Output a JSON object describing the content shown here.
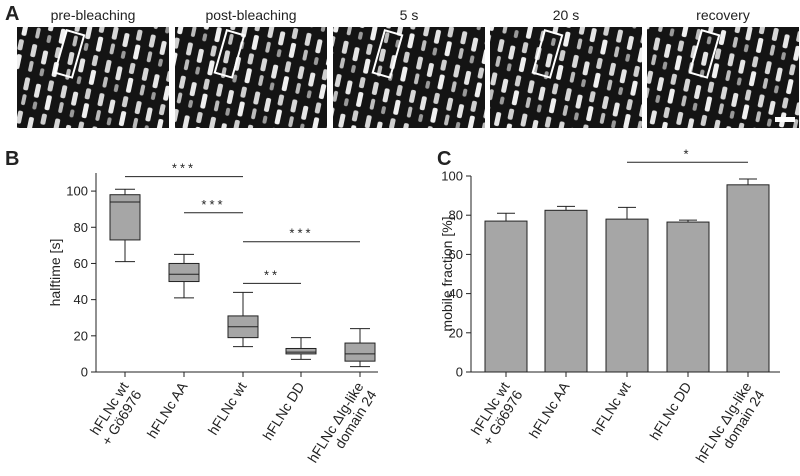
{
  "figure": {
    "panel_labels": [
      "A",
      "B",
      "C"
    ],
    "image_titles": [
      "pre-bleaching",
      "post-bleaching",
      "5 s",
      "20 s",
      "recovery"
    ]
  },
  "chart_data": [
    {
      "type": "box",
      "ylabel": "halftime [s]",
      "categories": [
        "hFLNc wt\n+ Gö6976",
        "hFLNc AA",
        "hFLNc wt",
        "hFLNc DD",
        "hFLNc ΔIg-like\ndomain 24"
      ],
      "boxes": [
        {
          "min": 61,
          "q1": 73,
          "median": 94,
          "q3": 98,
          "max": 101
        },
        {
          "min": 41,
          "q1": 50,
          "median": 54,
          "q3": 60,
          "max": 65
        },
        {
          "min": 14,
          "q1": 19,
          "median": 25,
          "q3": 31,
          "max": 44
        },
        {
          "min": 7,
          "q1": 10,
          "median": 11,
          "q3": 13,
          "max": 19
        },
        {
          "min": 3,
          "q1": 6,
          "median": 10,
          "q3": 16,
          "max": 24
        }
      ],
      "color": "#a6a6a6",
      "ylim": [
        0,
        110
      ],
      "yticks": [
        0,
        20,
        40,
        60,
        80,
        100
      ],
      "annotations": [
        {
          "label": "***",
          "y": 108,
          "between": [
            0,
            2
          ]
        },
        {
          "label": "***",
          "y": 88,
          "between": [
            1,
            2
          ]
        },
        {
          "label": "***",
          "y": 72,
          "between": [
            2,
            4
          ]
        },
        {
          "label": "**",
          "y": 49,
          "between": [
            2,
            3
          ]
        }
      ]
    },
    {
      "type": "bar",
      "ylabel": "mobile fraction [%]",
      "categories": [
        "hFLNc wt\n+ Gö6976",
        "hFLNc AA",
        "hFLNc wt",
        "hFLNc DD",
        "hFLNc ΔIg-like\ndomain 24"
      ],
      "values": [
        77,
        82.5,
        78,
        76.5,
        95.5
      ],
      "errors": [
        4,
        2,
        6,
        1,
        3
      ],
      "color": "#a6a6a6",
      "ylim": [
        0,
        100
      ],
      "yticks": [
        0,
        20,
        40,
        60,
        80,
        100
      ],
      "annotations": [
        {
          "label": "*",
          "y": 107,
          "between": [
            2,
            4
          ]
        }
      ]
    }
  ]
}
